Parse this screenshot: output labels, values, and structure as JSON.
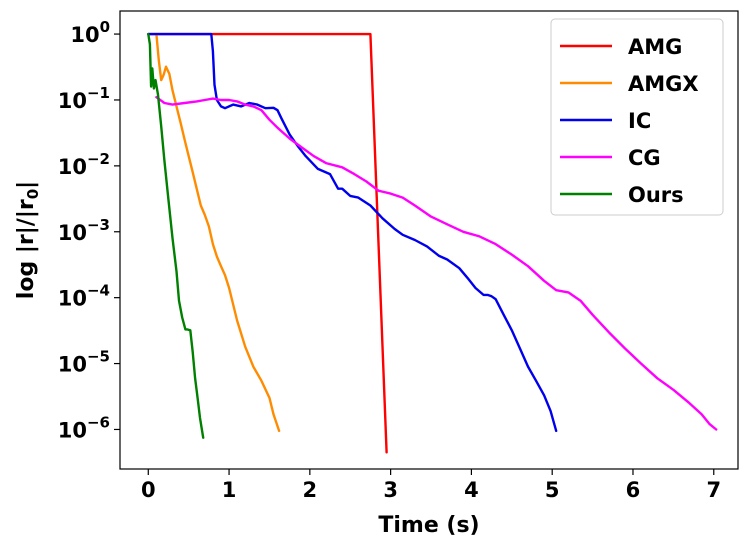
{
  "chart_data": {
    "type": "line",
    "title": "",
    "xlabel": "Time (s)",
    "ylabel": "log |r|/|r₀|",
    "ylabel_parts": {
      "prefix": "log |r|/|r",
      "sub": "0",
      "suffix": "|"
    },
    "xlim": [
      -0.35,
      7.3
    ],
    "ylim_log10": [
      -6.6,
      0.35
    ],
    "y_scale": "log",
    "x_ticks": [
      0,
      1,
      2,
      3,
      4,
      5,
      6,
      7
    ],
    "x_tick_labels": [
      "0",
      "1",
      "2",
      "3",
      "4",
      "5",
      "6",
      "7"
    ],
    "y_ticks_exp": [
      0,
      -1,
      -2,
      -3,
      -4,
      -5,
      -6
    ],
    "y_tick_base": "10",
    "y_tick_exp_labels": [
      "0",
      "−1",
      "−2",
      "−3",
      "−4",
      "−5",
      "−6"
    ],
    "legend_position": "top-right",
    "series": [
      {
        "name": "AMG",
        "color": "#ff0000",
        "x": [
          0.0,
          2.75,
          2.95
        ],
        "y": [
          1.0,
          1.0,
          4.5e-07
        ]
      },
      {
        "name": "AMGX",
        "color": "#ff8c00",
        "x": [
          0.1,
          0.13,
          0.16,
          0.19,
          0.22,
          0.26,
          0.3,
          0.35,
          0.4,
          0.45,
          0.5,
          0.55,
          0.6,
          0.65,
          0.7,
          0.75,
          0.8,
          0.85,
          0.9,
          0.95,
          1.0,
          1.1,
          1.2,
          1.3,
          1.4,
          1.5,
          1.55,
          1.62
        ],
        "y": [
          1.0,
          0.4,
          0.2,
          0.24,
          0.32,
          0.25,
          0.14,
          0.08,
          0.045,
          0.025,
          0.014,
          0.008,
          0.0045,
          0.0025,
          0.0018,
          0.0012,
          0.00065,
          0.00042,
          0.0003,
          0.00022,
          0.00014,
          4.5e-05,
          1.8e-05,
          9e-06,
          5.5e-06,
          3e-06,
          1.7e-06,
          9.5e-07
        ]
      },
      {
        "name": "IC",
        "color": "#0000ee",
        "x": [
          0.0,
          0.78,
          0.8,
          0.82,
          0.85,
          0.9,
          0.95,
          1.05,
          1.15,
          1.25,
          1.35,
          1.45,
          1.55,
          1.6,
          1.65,
          1.75,
          1.85,
          1.95,
          2.1,
          2.25,
          2.35,
          2.4,
          2.5,
          2.6,
          2.75,
          2.9,
          3.05,
          3.15,
          3.3,
          3.45,
          3.6,
          3.7,
          3.85,
          3.95,
          4.05,
          4.15,
          4.2,
          4.25,
          4.3,
          4.4,
          4.5,
          4.6,
          4.7,
          4.8,
          4.9,
          4.98,
          5.05
        ],
        "y": [
          1.0,
          1.0,
          0.55,
          0.17,
          0.1,
          0.08,
          0.075,
          0.085,
          0.08,
          0.09,
          0.085,
          0.075,
          0.076,
          0.07,
          0.052,
          0.03,
          0.02,
          0.014,
          0.009,
          0.0075,
          0.0045,
          0.0045,
          0.0035,
          0.0033,
          0.0025,
          0.0016,
          0.0011,
          0.0009,
          0.00075,
          0.0006,
          0.00043,
          0.00038,
          0.00028,
          0.0002,
          0.00014,
          0.00011,
          0.00011,
          0.000105,
          9.5e-05,
          5.5e-05,
          3.2e-05,
          1.7e-05,
          9e-06,
          5.5e-06,
          3.3e-06,
          1.9e-06,
          9.5e-07
        ]
      },
      {
        "name": "CG",
        "color": "#ff00ff",
        "x": [
          0.1,
          0.2,
          0.3,
          0.45,
          0.6,
          0.7,
          0.8,
          0.9,
          1.0,
          1.1,
          1.2,
          1.3,
          1.4,
          1.5,
          1.6,
          1.75,
          1.9,
          2.05,
          2.2,
          2.4,
          2.55,
          2.7,
          2.85,
          3.0,
          3.15,
          3.3,
          3.5,
          3.7,
          3.9,
          4.1,
          4.3,
          4.5,
          4.7,
          4.9,
          5.05,
          5.2,
          5.35,
          5.5,
          5.7,
          5.9,
          6.1,
          6.3,
          6.5,
          6.7,
          6.85,
          6.95,
          7.03
        ],
        "y": [
          0.11,
          0.09,
          0.085,
          0.09,
          0.095,
          0.1,
          0.105,
          0.1,
          0.1,
          0.095,
          0.085,
          0.08,
          0.07,
          0.05,
          0.038,
          0.026,
          0.019,
          0.014,
          0.011,
          0.0095,
          0.0075,
          0.0058,
          0.0042,
          0.0038,
          0.0033,
          0.0025,
          0.0017,
          0.0013,
          0.001,
          0.00085,
          0.00065,
          0.00045,
          0.0003,
          0.00018,
          0.00013,
          0.00012,
          9e-05,
          5.5e-05,
          3e-05,
          1.7e-05,
          1e-05,
          6e-06,
          4e-06,
          2.5e-06,
          1.7e-06,
          1.2e-06,
          1e-06
        ]
      },
      {
        "name": "Ours",
        "color": "#008000",
        "x": [
          0.0,
          0.02,
          0.035,
          0.05,
          0.07,
          0.09,
          0.12,
          0.16,
          0.2,
          0.25,
          0.3,
          0.35,
          0.38,
          0.42,
          0.46,
          0.48,
          0.52,
          0.55,
          0.58,
          0.61,
          0.64,
          0.68
        ],
        "y": [
          1.0,
          0.7,
          0.16,
          0.3,
          0.15,
          0.2,
          0.12,
          0.04,
          0.012,
          0.003,
          0.0008,
          0.00025,
          9e-05,
          5e-05,
          3.3e-05,
          3.3e-05,
          3.2e-05,
          1.5e-05,
          6e-06,
          3e-06,
          1.5e-06,
          7.5e-07
        ]
      }
    ]
  }
}
